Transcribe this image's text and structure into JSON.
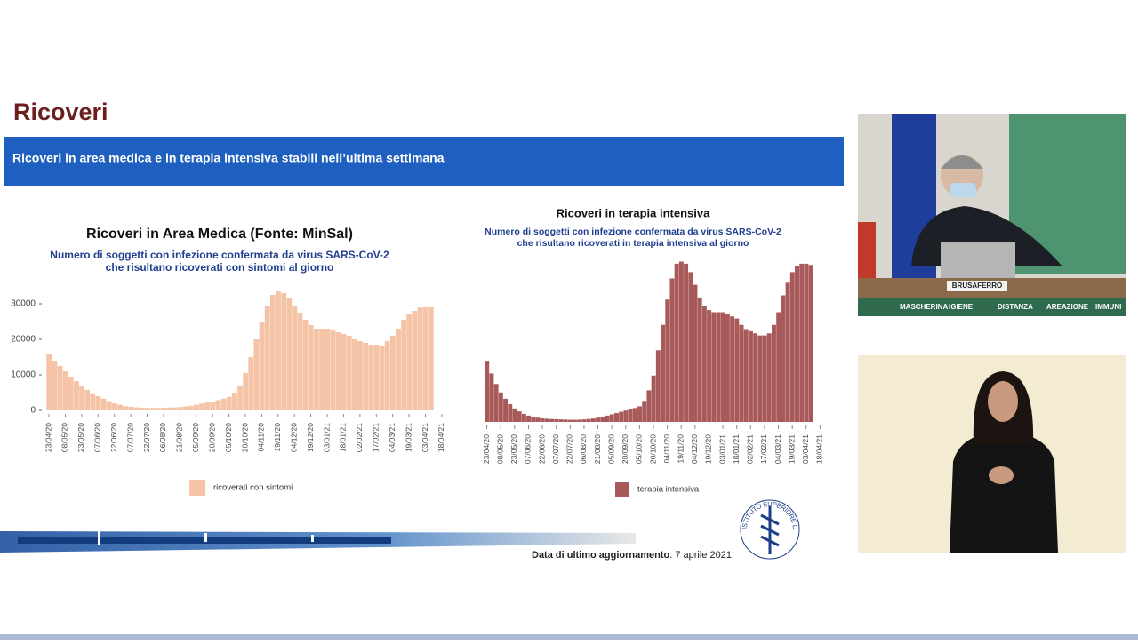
{
  "slide": {
    "title": "Ricoveri",
    "banner": "Ricoveri in area medica e in terapia intensiva stabili nell’ultima settimana",
    "footer_label": "Data di ultimo aggiornamento",
    "footer_date": ": 7 aprile 2021",
    "logo_text": "ISTITUTO SUPERIORE DI SANITÀ"
  },
  "video": {
    "nameplate": "BRUSAFERRO",
    "strip": [
      "MASCHERINA",
      "IGIENE",
      "DISTANZA",
      "AREAZIONE",
      "IMMUNI"
    ]
  },
  "chart_data": [
    {
      "type": "bar",
      "title": "Ricoveri in Area Medica (Fonte: MinSal)",
      "subtitle": [
        "Numero di soggetti con infezione confermata da virus SARS-CoV-2",
        "che risultano ricoverati con sintomi al giorno"
      ],
      "categories": [
        "23/04/20",
        null,
        null,
        "08/05/20",
        null,
        null,
        "23/05/20",
        null,
        null,
        "07/06/20",
        null,
        null,
        "22/06/20",
        null,
        null,
        "07/07/20",
        null,
        null,
        "22/07/20",
        null,
        null,
        "06/08/20",
        null,
        null,
        "21/08/20",
        null,
        null,
        "05/09/20",
        null,
        null,
        "20/09/20",
        null,
        null,
        "05/10/20",
        null,
        null,
        "20/10/20",
        null,
        null,
        "04/11/20",
        null,
        null,
        "19/11/20",
        null,
        null,
        "04/12/20",
        null,
        null,
        "19/12/20",
        null,
        null,
        "03/01/21",
        null,
        null,
        "18/01/21",
        null,
        null,
        "02/02/21",
        null,
        null,
        "17/02/21",
        null,
        null,
        "04/03/21",
        null,
        null,
        "19/03/21",
        null,
        null,
        "03/04/21",
        null,
        null,
        "18/04/21"
      ],
      "series": [
        {
          "name": "ricoverati con sintomi",
          "color": "#f5c4a6",
          "values": [
            16000,
            14000,
            12500,
            11000,
            9500,
            8200,
            7000,
            5800,
            4800,
            4000,
            3300,
            2600,
            2000,
            1600,
            1200,
            1000,
            850,
            750,
            720,
            700,
            720,
            750,
            800,
            850,
            950,
            1100,
            1300,
            1600,
            1900,
            2200,
            2500,
            2900,
            3300,
            3800,
            5000,
            7000,
            10500,
            15000,
            20000,
            25000,
            29500,
            32500,
            33500,
            33000,
            31500,
            29500,
            27500,
            25500,
            24000,
            23000,
            23000,
            23000,
            22500,
            22000,
            21500,
            21000,
            20000,
            19500,
            19000,
            18500,
            18500,
            18000,
            19500,
            21000,
            23000,
            25500,
            27000,
            28000,
            29000,
            29000,
            29000,
            null,
            null
          ]
        }
      ],
      "ylim": [
        0,
        35000
      ],
      "yticks": [
        0,
        10000,
        20000,
        30000
      ]
    },
    {
      "type": "bar",
      "title": "Ricoveri in terapia intensiva",
      "subtitle": [
        "Numero di soggetti con infezione confermata da virus SARS-CoV-2",
        "che risultano ricoverati in terapia intensiva al giorno"
      ],
      "categories": [
        "23/04/20",
        null,
        null,
        "08/05/20",
        null,
        null,
        "23/05/20",
        null,
        null,
        "07/06/20",
        null,
        null,
        "22/06/20",
        null,
        null,
        "07/07/20",
        null,
        null,
        "22/07/20",
        null,
        null,
        "06/08/20",
        null,
        null,
        "21/08/20",
        null,
        null,
        "05/09/20",
        null,
        null,
        "20/09/20",
        null,
        null,
        "05/10/20",
        null,
        null,
        "20/10/20",
        null,
        null,
        "04/11/20",
        null,
        null,
        "19/11/20",
        null,
        null,
        "04/12/20",
        null,
        null,
        "19/12/20",
        null,
        null,
        "03/01/21",
        null,
        null,
        "18/01/21",
        null,
        null,
        "02/02/21",
        null,
        null,
        "17/02/21",
        null,
        null,
        "04/03/21",
        null,
        null,
        "19/03/21",
        null,
        null,
        "03/04/21",
        null,
        null,
        "18/04/21"
      ],
      "series": [
        {
          "name": "terapia intensiva",
          "color": "#a85a5a",
          "values": [
            1450,
            1150,
            900,
            700,
            550,
            420,
            320,
            250,
            190,
            150,
            120,
            100,
            85,
            75,
            70,
            65,
            60,
            55,
            50,
            50,
            55,
            60,
            70,
            80,
            100,
            120,
            150,
            180,
            210,
            240,
            270,
            300,
            330,
            370,
            500,
            750,
            1100,
            1700,
            2300,
            2900,
            3400,
            3750,
            3800,
            3750,
            3550,
            3250,
            2950,
            2750,
            2650,
            2600,
            2600,
            2600,
            2550,
            2500,
            2450,
            2300,
            2200,
            2150,
            2100,
            2050,
            2050,
            2100,
            2300,
            2600,
            3000,
            3300,
            3550,
            3700,
            3750,
            3750,
            3720,
            null,
            null
          ]
        }
      ],
      "ylim": [
        0,
        4000
      ]
    }
  ]
}
